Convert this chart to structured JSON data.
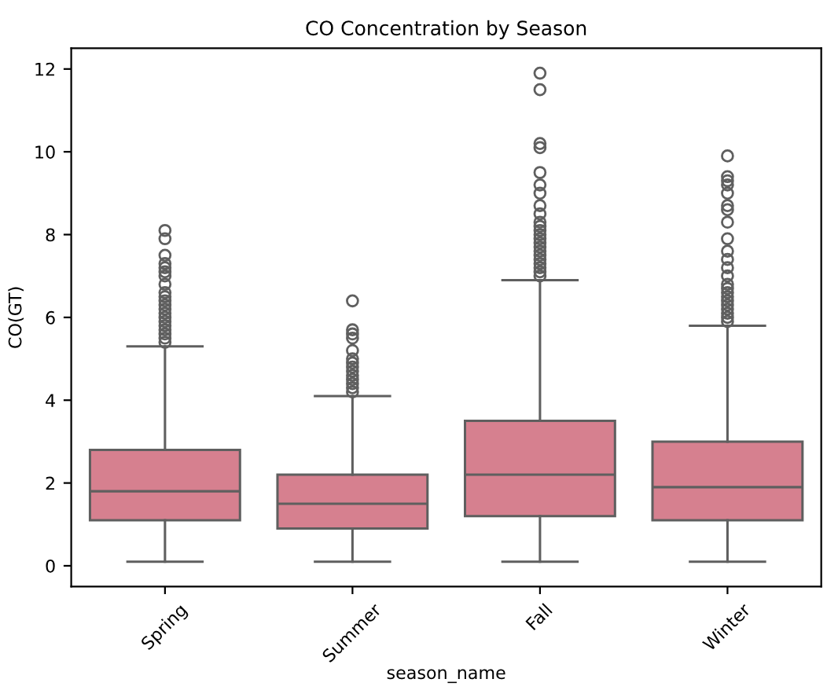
{
  "chart_data": {
    "type": "box",
    "title": "CO Concentration by Season",
    "xlabel": "season_name",
    "ylabel": "CO(GT)",
    "categories": [
      "Spring",
      "Summer",
      "Fall",
      "Winter"
    ],
    "color": "#d6808f",
    "boxes": [
      {
        "low": 0.1,
        "q1": 1.1,
        "median": 1.8,
        "q3": 2.8,
        "high": 5.3,
        "outliers": [
          5.4,
          5.5,
          5.6,
          5.7,
          5.8,
          5.9,
          6.0,
          6.1,
          6.2,
          6.3,
          6.4,
          6.5,
          6.6,
          6.8,
          7.0,
          7.1,
          7.2,
          7.3,
          7.5,
          7.9,
          8.1
        ]
      },
      {
        "low": 0.1,
        "q1": 0.9,
        "median": 1.5,
        "q3": 2.2,
        "high": 4.1,
        "outliers": [
          4.2,
          4.3,
          4.4,
          4.5,
          4.6,
          4.7,
          4.8,
          4.9,
          5.0,
          5.2,
          5.5,
          5.6,
          5.7,
          6.4
        ]
      },
      {
        "low": 0.1,
        "q1": 1.2,
        "median": 2.2,
        "q3": 3.5,
        "high": 6.9,
        "outliers": [
          7.0,
          7.1,
          7.2,
          7.3,
          7.4,
          7.5,
          7.6,
          7.7,
          7.8,
          7.9,
          8.0,
          8.1,
          8.2,
          8.3,
          8.5,
          8.7,
          9.0,
          9.2,
          9.5,
          10.1,
          10.2,
          11.5,
          11.9
        ]
      },
      {
        "low": 0.1,
        "q1": 1.1,
        "median": 1.9,
        "q3": 3.0,
        "high": 5.8,
        "outliers": [
          5.9,
          6.0,
          6.1,
          6.2,
          6.3,
          6.4,
          6.5,
          6.6,
          6.7,
          6.8,
          7.0,
          7.2,
          7.4,
          7.6,
          7.9,
          8.3,
          8.6,
          8.7,
          9.0,
          9.2,
          9.3,
          9.4,
          9.9
        ]
      }
    ],
    "ylim": [
      -0.5,
      12.5
    ],
    "yticks": [
      0,
      2,
      4,
      6,
      8,
      10,
      12
    ]
  }
}
